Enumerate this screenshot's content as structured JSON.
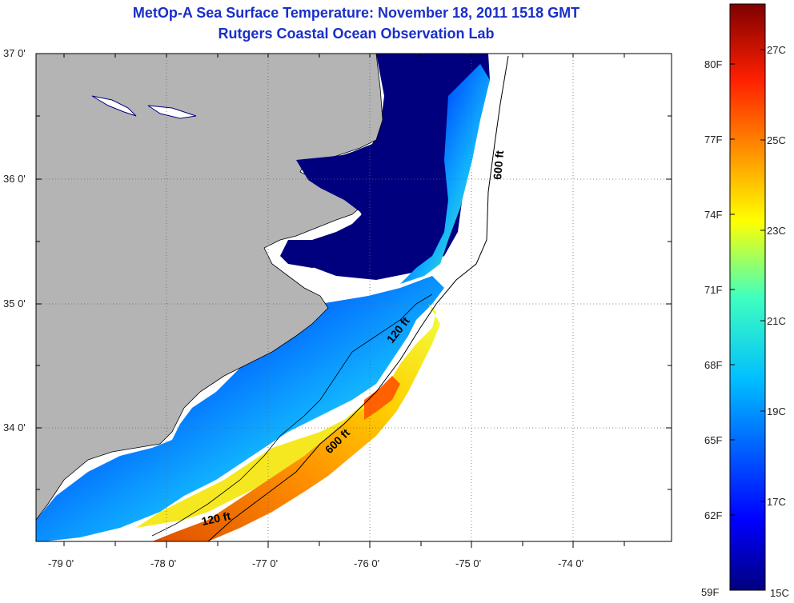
{
  "title": {
    "line1": "MetOp-A Sea Surface Temperature:  November 18, 2011 1518 GMT",
    "line2": "Rutgers Coastal Ocean Observation Lab"
  },
  "map": {
    "lat_labels": [
      "37 0'",
      "36 0'",
      "35 0'",
      "34 0'"
    ],
    "lon_labels": [
      "-79 0'",
      "-78 0'",
      "-77 0'",
      "-76 0'",
      "-75 0'",
      "-74 0'"
    ],
    "contour_labels": [
      "600 ft",
      "120 ft",
      "600 ft",
      "120 ft"
    ],
    "colors": {
      "land": "#b4b4b4",
      "cold": "#00007f",
      "water_nodata": "#ffffff"
    }
  },
  "colorbar": {
    "fahrenheit": [
      "80F",
      "77F",
      "74F",
      "71F",
      "68F",
      "65F",
      "62F",
      "59F"
    ],
    "celsius": [
      "27C",
      "25C",
      "23C",
      "21C",
      "19C",
      "17C",
      "15C"
    ]
  }
}
